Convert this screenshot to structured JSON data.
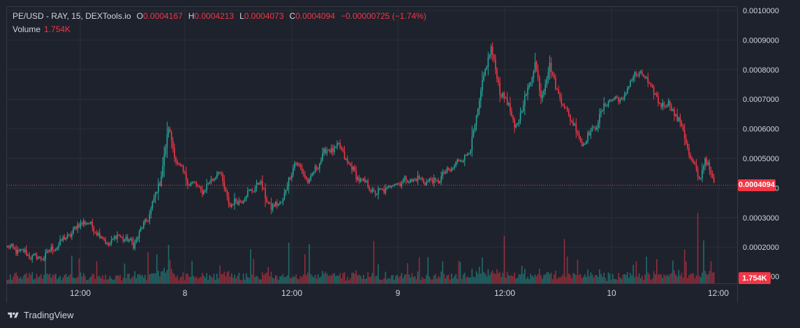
{
  "legend": {
    "symbol": "PE/USD - RAY, 15, DEXTools.io",
    "open_key": "O",
    "open": "0.0004167",
    "high_key": "H",
    "high": "0.0004213",
    "low_key": "L",
    "low": "0.0004073",
    "close_key": "C",
    "close": "0.0004094",
    "change": "−0.00000725 (−1.74%)"
  },
  "volume_legend": {
    "label": "Volume",
    "value": "1.754K"
  },
  "current_price_label": "0.0004094",
  "volume_tag": "1.754K",
  "partial_axis_label": "000",
  "branding": "TradingView",
  "colors": {
    "up": "#26a69a",
    "down": "#f23645",
    "background": "#1e222d",
    "grid": "#2a2e39",
    "text": "#d1d4dc"
  },
  "chart_data": {
    "type": "candlestick",
    "title": "PE/USD - RAY, 15, DEXTools.io",
    "y_axis": {
      "ticks": [
        "0.0002000",
        "0.0003000",
        "0.0004000",
        "0.0005000",
        "0.0006000",
        "0.0007000",
        "0.0008000",
        "0.0009000",
        "0.0010000"
      ],
      "range": [
        0.000155,
        0.001
      ]
    },
    "x_axis": {
      "ticks": [
        "12:00",
        "8",
        "12:00",
        "9",
        "12:00",
        "10",
        "12:00"
      ]
    },
    "price_path": [
      [
        0,
        0.0002
      ],
      [
        12,
        0.00018
      ],
      [
        22,
        0.00016
      ],
      [
        30,
        0.00019
      ],
      [
        42,
        0.00024
      ],
      [
        52,
        0.00029
      ],
      [
        60,
        0.00026
      ],
      [
        68,
        0.00021
      ],
      [
        76,
        0.00024
      ],
      [
        86,
        0.00021
      ],
      [
        96,
        0.0003
      ],
      [
        104,
        0.00042
      ],
      [
        110,
        0.0006
      ],
      [
        116,
        0.00048
      ],
      [
        124,
        0.00042
      ],
      [
        134,
        0.00039
      ],
      [
        144,
        0.00046
      ],
      [
        152,
        0.00034
      ],
      [
        162,
        0.00037
      ],
      [
        172,
        0.00042
      ],
      [
        180,
        0.00033
      ],
      [
        188,
        0.00036
      ],
      [
        196,
        0.00049
      ],
      [
        206,
        0.00042
      ],
      [
        216,
        0.00052
      ],
      [
        226,
        0.00054
      ],
      [
        238,
        0.00044
      ],
      [
        252,
        0.00038
      ],
      [
        266,
        0.00042
      ],
      [
        278,
        0.00043
      ],
      [
        292,
        0.00042
      ],
      [
        306,
        0.00048
      ],
      [
        316,
        0.00053
      ],
      [
        324,
        0.00075
      ],
      [
        330,
        0.00088
      ],
      [
        336,
        0.00072
      ],
      [
        340,
        0.00071
      ],
      [
        346,
        0.0006
      ],
      [
        350,
        0.00065
      ],
      [
        356,
        0.00075
      ],
      [
        360,
        0.00082
      ],
      [
        364,
        0.00071
      ],
      [
        370,
        0.00081
      ],
      [
        378,
        0.00069
      ],
      [
        384,
        0.00064
      ],
      [
        392,
        0.00055
      ],
      [
        400,
        0.0006
      ],
      [
        410,
        0.0007
      ],
      [
        420,
        0.0007
      ],
      [
        428,
        0.00079
      ],
      [
        436,
        0.00077
      ],
      [
        444,
        0.00069
      ],
      [
        452,
        0.00068
      ],
      [
        460,
        0.00061
      ],
      [
        466,
        0.0005
      ],
      [
        472,
        0.00043
      ],
      [
        476,
        0.0005
      ],
      [
        480,
        0.00044
      ],
      [
        484,
        0.00041
      ]
    ],
    "volume_spikes": [
      [
        96,
        4200
      ],
      [
        110,
        5200
      ],
      [
        166,
        4600
      ],
      [
        192,
        5500
      ],
      [
        206,
        5300
      ],
      [
        250,
        5700
      ],
      [
        339,
        6400
      ],
      [
        380,
        6000
      ],
      [
        436,
        3600
      ],
      [
        462,
        4600
      ],
      [
        471,
        9500
      ],
      [
        475,
        5800
      ],
      [
        480,
        3000
      ]
    ],
    "volume_scale_max": 10000,
    "last_volume": "1.754K"
  }
}
